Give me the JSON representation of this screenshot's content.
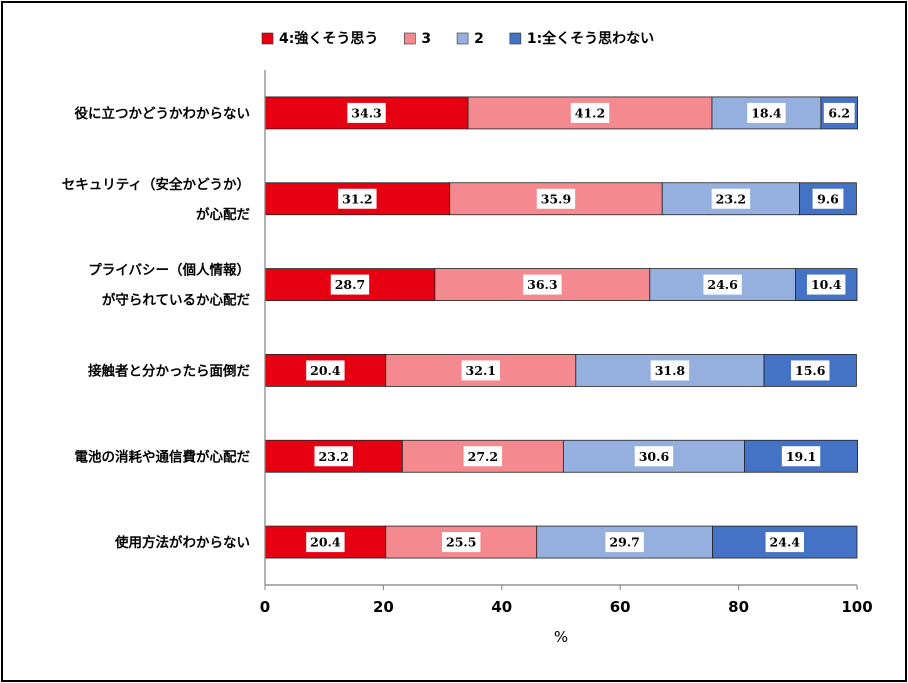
{
  "chart_data": {
    "type": "bar",
    "orientation": "horizontal",
    "stacked": true,
    "categories": [
      [
        "役に立つかどうかわからない"
      ],
      [
        "セキュリティ（安全かどうか）",
        "が心配だ"
      ],
      [
        "プライバシー（個人情報）",
        "が守られているか心配だ"
      ],
      [
        "接触者と分かったら面倒だ"
      ],
      [
        "電池の消耗や通信費が心配だ"
      ],
      [
        "使用方法がわからない"
      ]
    ],
    "series": [
      {
        "name": "4:強くそう思う",
        "color": "#e60012",
        "values": [
          34.3,
          31.2,
          28.7,
          20.4,
          23.2,
          20.4
        ]
      },
      {
        "name": "3",
        "color": "#f4898f",
        "values": [
          41.2,
          35.9,
          36.3,
          32.1,
          27.2,
          25.5
        ]
      },
      {
        "name": "2",
        "color": "#95b0df",
        "values": [
          18.4,
          23.2,
          24.6,
          31.8,
          30.6,
          29.7
        ]
      },
      {
        "name": "1:全くそう思わない",
        "color": "#4472c4",
        "values": [
          6.2,
          9.6,
          10.4,
          15.6,
          19.1,
          24.4
        ]
      }
    ],
    "xlabel": "%",
    "xlim": [
      0,
      100
    ],
    "xticks": [
      0,
      20,
      40,
      60,
      80,
      100
    ],
    "grid": false,
    "legend_position": "top"
  }
}
